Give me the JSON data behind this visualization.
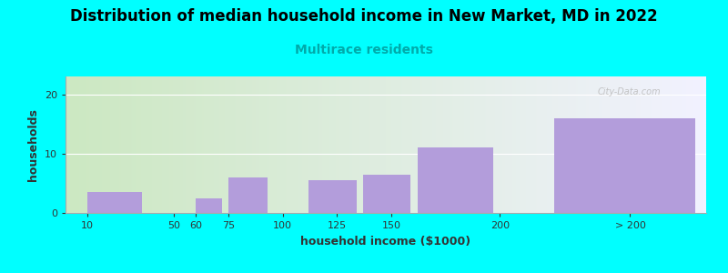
{
  "title": "Distribution of median household income in New Market, MD in 2022",
  "subtitle": "Multirace residents",
  "xlabel": "household income ($1000)",
  "ylabel": "households",
  "background_color": "#00FFFF",
  "bar_color": "#b39ddb",
  "values": [
    3.5,
    0,
    2.5,
    6,
    0,
    5.5,
    6.5,
    11,
    16
  ],
  "bar_lefts": [
    10,
    47,
    60,
    75,
    100,
    112,
    137,
    162,
    225
  ],
  "bar_widths": [
    25,
    3,
    12,
    18,
    0,
    22,
    22,
    35,
    65
  ],
  "xtick_labels": [
    "10",
    "50",
    "60",
    "75",
    "100",
    "125",
    "150",
    "200",
    "> 200"
  ],
  "xtick_positions": [
    10,
    50,
    60,
    75,
    100,
    125,
    150,
    200,
    260
  ],
  "xlim": [
    0,
    295
  ],
  "yticks": [
    0,
    10,
    20
  ],
  "ylim": [
    0,
    23
  ],
  "title_fontsize": 12,
  "subtitle_fontsize": 10,
  "axis_label_fontsize": 9,
  "tick_fontsize": 8
}
